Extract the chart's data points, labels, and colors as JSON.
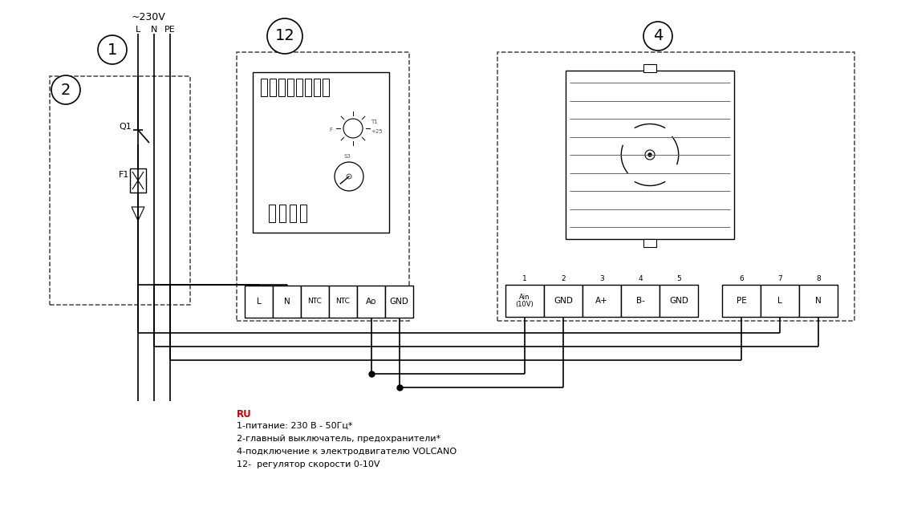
{
  "bg_color": "#ffffff",
  "line_color": "#000000",
  "red_color": "#cc0000",
  "fig_width": 11.18,
  "fig_height": 6.47,
  "power_label": "~230V",
  "circle1_label": "1",
  "circle2_label": "2",
  "circle4_label": "4",
  "circle12_label": "12",
  "controller_terminals": [
    "L",
    "N",
    "NTC",
    "NTC",
    "Ao",
    "GND"
  ],
  "g1_labels": [
    "Ain\n(10V)",
    "GND",
    "A+",
    "B-",
    "GND"
  ],
  "g1_nums": [
    "1",
    "2",
    "3",
    "4",
    "5"
  ],
  "g2_labels": [
    "PE",
    "L",
    "N"
  ],
  "g2_nums": [
    "6",
    "7",
    "8"
  ],
  "legend_lines": [
    "1-питание: 230 В - 50Гц*",
    "2-главный выключатель, предохранители*",
    "4-подключение к электродвигателю VOLCANO",
    "12-  регулятор скорости 0-10V"
  ]
}
